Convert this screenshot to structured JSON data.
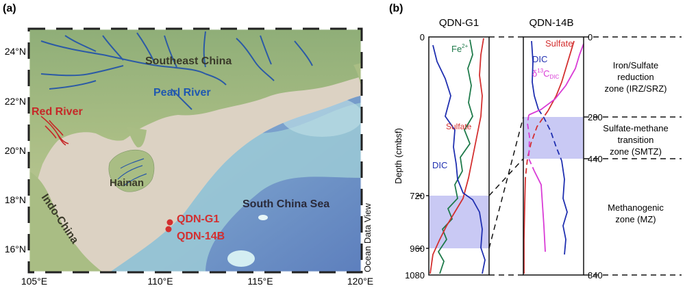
{
  "panel_a": {
    "label": "(a)",
    "lat_ticks": [
      "24°N",
      "22°N",
      "20°N",
      "18°N",
      "16°N"
    ],
    "lon_ticks": [
      "105°E",
      "110°E",
      "115°E",
      "120°E"
    ],
    "regions": {
      "southeast_china": "Southeast China",
      "pearl_river": "Pearl River",
      "red_river": "Red River",
      "hainan": "Hainan",
      "indo_china": "Indo-China",
      "south_china_sea": "South China Sea"
    },
    "sites": [
      "QDN-G1",
      "QDN-14B"
    ],
    "credit": "Ocean Data View"
  },
  "panel_b": {
    "label": "(b)",
    "y_axis_label": "Depth (cmbsf)",
    "col1_title": "QDN-G1",
    "col2_title": "QDN-14B",
    "col1_depths": [
      "0",
      "720",
      "960",
      "1080"
    ],
    "col2_depths": [
      "0",
      "280",
      "440",
      "840"
    ],
    "col1_labels": {
      "fe": "Fe",
      "fe_sup": "2+",
      "sulfate": "Sulfate",
      "dic": "DIC"
    },
    "col2_labels": {
      "sulfate": "Sulfate",
      "dic": "DIC",
      "delta": "δ",
      "delta_sup": "13",
      "c": "C",
      "c_sub": "DIC"
    },
    "zones": {
      "z1": [
        "Iron/Sulfate",
        "reduction",
        "zone (IRZ/SRZ)"
      ],
      "z2": [
        "Sulfate-methane",
        "transition",
        "zone (SMTZ)"
      ],
      "z3": [
        "Methanogenic",
        "zone (MZ)"
      ]
    }
  },
  "colors": {
    "water_shallow": "#dcd2c3",
    "river": "#2b5aa6",
    "red_river": "#c62828",
    "site": "#d32f2f",
    "smtz_fill": "#c9c9f4",
    "fe_line": "#1e7a4a",
    "sulfate_line": "#d32f2f",
    "dic_line": "#1f2fb0",
    "delta_line": "#d93bd6"
  }
}
